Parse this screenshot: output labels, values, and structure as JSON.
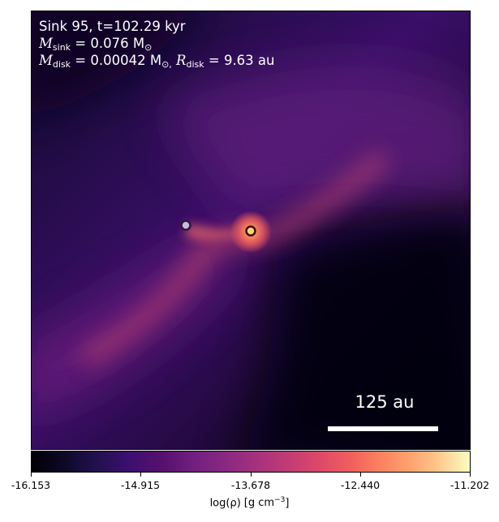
{
  "annotation": {
    "line1": "Sink 95, t=102.29 kyr",
    "m_sink_symbol": "M",
    "m_sink_sub": "sink",
    "m_sink_value": " = 0.076 M",
    "m_sink_sun": "⊙",
    "m_disk_symbol": "M",
    "m_disk_sub": "disk",
    "m_disk_value": " = 0.00042 M",
    "m_disk_sun": "⊙,",
    "r_disk_symbol": "R",
    "r_disk_sub": "disk",
    "r_disk_value": " = 9.63 au"
  },
  "scale_bar": {
    "label": "125 au"
  },
  "sinks": [
    {
      "name": "companion",
      "fill": "#c9b8d8",
      "stroke": "#2a1840"
    },
    {
      "name": "primary",
      "fill": "#f7d27a",
      "stroke": "#3a0d12"
    }
  ],
  "colorbar": {
    "ticks": [
      "-16.153",
      "-14.915",
      "-13.678",
      "-12.440",
      "-11.202"
    ],
    "label_prefix": "log(ρ)",
    "label_unit": "[g cm",
    "label_exp": "−3",
    "label_close": "]",
    "colormap": "inferno"
  }
}
